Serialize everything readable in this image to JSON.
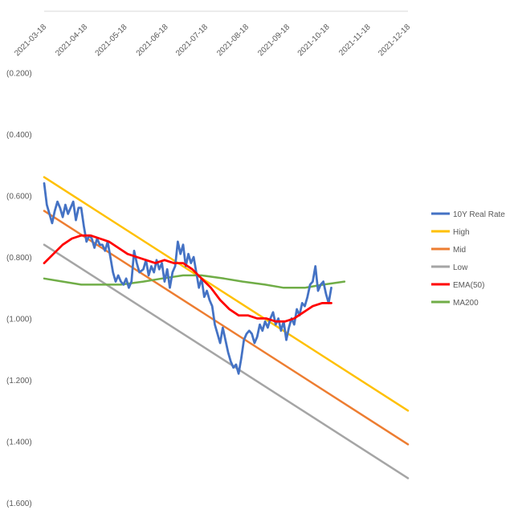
{
  "chart_data": {
    "type": "line",
    "title": "",
    "xlabel": "",
    "ylabel": "",
    "x_axis_position": "top",
    "y_axis_reversed": true,
    "ylim": [
      -1.6,
      0.0
    ],
    "xlim": [
      "2021-03-18",
      "2021-12-18"
    ],
    "x_tick_labels": [
      "2021-03-18",
      "2021-04-18",
      "2021-05-18",
      "2021-06-18",
      "2021-07-18",
      "2021-08-18",
      "2021-09-18",
      "2021-10-18",
      "2021-11-18",
      "2021-12-18"
    ],
    "y_ticks": [
      -0.2,
      -0.4,
      -0.6,
      -0.8,
      -1.0,
      -1.2,
      -1.4,
      -1.6
    ],
    "y_tick_labels": [
      "(0.200)",
      "(0.400)",
      "(0.600)",
      "(0.800)",
      "(1.000)",
      "(1.200)",
      "(1.400)",
      "(1.600)"
    ],
    "grid": false,
    "legend_position": "right",
    "series": [
      {
        "name": "10Y Real Rate",
        "color": "#4472C4",
        "x": [
          "2021-03-18",
          "2021-03-20",
          "2021-03-22",
          "2021-03-24",
          "2021-03-26",
          "2021-03-28",
          "2021-03-30",
          "2021-04-01",
          "2021-04-03",
          "2021-04-05",
          "2021-04-07",
          "2021-04-09",
          "2021-04-11",
          "2021-04-13",
          "2021-04-15",
          "2021-04-17",
          "2021-04-19",
          "2021-04-21",
          "2021-04-23",
          "2021-04-25",
          "2021-04-27",
          "2021-04-29",
          "2021-05-01",
          "2021-05-03",
          "2021-05-05",
          "2021-05-07",
          "2021-05-09",
          "2021-05-11",
          "2021-05-13",
          "2021-05-15",
          "2021-05-17",
          "2021-05-19",
          "2021-05-21",
          "2021-05-23",
          "2021-05-25",
          "2021-05-27",
          "2021-05-29",
          "2021-06-01",
          "2021-06-03",
          "2021-06-05",
          "2021-06-07",
          "2021-06-09",
          "2021-06-11",
          "2021-06-13",
          "2021-06-15",
          "2021-06-17",
          "2021-06-19",
          "2021-06-21",
          "2021-06-23",
          "2021-06-25",
          "2021-06-27",
          "2021-06-29",
          "2021-07-01",
          "2021-07-03",
          "2021-07-05",
          "2021-07-07",
          "2021-07-09",
          "2021-07-11",
          "2021-07-13",
          "2021-07-15",
          "2021-07-17",
          "2021-07-19",
          "2021-07-21",
          "2021-07-23",
          "2021-07-25",
          "2021-07-27",
          "2021-07-29",
          "2021-07-31",
          "2021-08-02",
          "2021-08-04",
          "2021-08-06",
          "2021-08-08",
          "2021-08-10",
          "2021-08-12",
          "2021-08-14",
          "2021-08-16",
          "2021-08-18",
          "2021-08-20",
          "2021-08-22",
          "2021-08-24",
          "2021-08-26",
          "2021-08-28",
          "2021-08-30",
          "2021-09-01",
          "2021-09-03",
          "2021-09-05",
          "2021-09-07",
          "2021-09-09",
          "2021-09-11",
          "2021-09-13",
          "2021-09-15",
          "2021-09-17",
          "2021-09-19",
          "2021-09-21",
          "2021-09-23",
          "2021-09-25",
          "2021-09-27",
          "2021-09-29",
          "2021-10-01",
          "2021-10-03",
          "2021-10-05",
          "2021-10-07",
          "2021-10-09",
          "2021-10-11",
          "2021-10-13",
          "2021-10-15",
          "2021-10-17",
          "2021-10-19",
          "2021-10-21"
        ],
        "y": [
          -0.56,
          -0.63,
          -0.66,
          -0.69,
          -0.65,
          -0.62,
          -0.64,
          -0.67,
          -0.63,
          -0.66,
          -0.64,
          -0.62,
          -0.68,
          -0.64,
          -0.64,
          -0.7,
          -0.75,
          -0.73,
          -0.74,
          -0.77,
          -0.74,
          -0.76,
          -0.76,
          -0.78,
          -0.75,
          -0.8,
          -0.85,
          -0.88,
          -0.86,
          -0.88,
          -0.89,
          -0.87,
          -0.9,
          -0.88,
          -0.78,
          -0.82,
          -0.85,
          -0.84,
          -0.81,
          -0.86,
          -0.83,
          -0.85,
          -0.81,
          -0.84,
          -0.82,
          -0.88,
          -0.84,
          -0.9,
          -0.85,
          -0.83,
          -0.75,
          -0.79,
          -0.76,
          -0.83,
          -0.79,
          -0.82,
          -0.8,
          -0.85,
          -0.9,
          -0.87,
          -0.93,
          -0.91,
          -0.94,
          -0.96,
          -1.02,
          -1.05,
          -1.08,
          -1.03,
          -1.07,
          -1.11,
          -1.14,
          -1.16,
          -1.15,
          -1.18,
          -1.13,
          -1.07,
          -1.05,
          -1.04,
          -1.05,
          -1.08,
          -1.06,
          -1.02,
          -1.04,
          -1.01,
          -1.03,
          -1.0,
          -0.98,
          -1.02,
          -1.0,
          -1.04,
          -1.01,
          -1.07,
          -1.03,
          -1.0,
          -1.02,
          -0.97,
          -0.99,
          -0.95,
          -0.96,
          -0.93,
          -0.89,
          -0.88,
          -0.83,
          -0.91,
          -0.89,
          -0.88,
          -0.92,
          -0.95,
          -0.9
        ]
      },
      {
        "name": "High",
        "color": "#FFC000",
        "x": [
          "2021-03-18",
          "2021-12-18"
        ],
        "y": [
          -0.54,
          -1.3
        ]
      },
      {
        "name": "Mid",
        "color": "#ED7D31",
        "x": [
          "2021-03-18",
          "2021-12-18"
        ],
        "y": [
          -0.65,
          -1.41
        ]
      },
      {
        "name": "Low",
        "color": "#A5A5A5",
        "x": [
          "2021-03-18",
          "2021-12-18"
        ],
        "y": [
          -0.76,
          -1.52
        ]
      },
      {
        "name": "EMA(50)",
        "color": "#FF0000",
        "x": [
          "2021-03-18",
          "2021-03-25",
          "2021-04-01",
          "2021-04-08",
          "2021-04-15",
          "2021-04-22",
          "2021-04-29",
          "2021-05-06",
          "2021-05-13",
          "2021-05-20",
          "2021-05-27",
          "2021-06-03",
          "2021-06-10",
          "2021-06-17",
          "2021-06-24",
          "2021-07-01",
          "2021-07-08",
          "2021-07-15",
          "2021-07-22",
          "2021-07-29",
          "2021-08-05",
          "2021-08-12",
          "2021-08-19",
          "2021-08-26",
          "2021-09-02",
          "2021-09-09",
          "2021-09-16",
          "2021-09-23",
          "2021-09-30",
          "2021-10-07",
          "2021-10-14",
          "2021-10-21"
        ],
        "y": [
          -0.82,
          -0.79,
          -0.76,
          -0.74,
          -0.73,
          -0.73,
          -0.74,
          -0.75,
          -0.77,
          -0.79,
          -0.8,
          -0.81,
          -0.82,
          -0.81,
          -0.82,
          -0.82,
          -0.84,
          -0.87,
          -0.9,
          -0.94,
          -0.97,
          -0.99,
          -0.99,
          -1.0,
          -1.0,
          -1.01,
          -1.01,
          -1.0,
          -0.98,
          -0.96,
          -0.95,
          -0.95
        ]
      },
      {
        "name": "MA200",
        "color": "#70AD47",
        "x": [
          "2021-03-18",
          "2021-04-01",
          "2021-04-15",
          "2021-05-01",
          "2021-05-15",
          "2021-06-01",
          "2021-06-15",
          "2021-07-01",
          "2021-07-15",
          "2021-08-01",
          "2021-08-15",
          "2021-09-01",
          "2021-09-15",
          "2021-10-01",
          "2021-10-15",
          "2021-10-31"
        ],
        "y": [
          -0.87,
          -0.88,
          -0.89,
          -0.89,
          -0.89,
          -0.88,
          -0.87,
          -0.86,
          -0.86,
          -0.87,
          -0.88,
          -0.89,
          -0.9,
          -0.9,
          -0.89,
          -0.88
        ]
      }
    ]
  }
}
